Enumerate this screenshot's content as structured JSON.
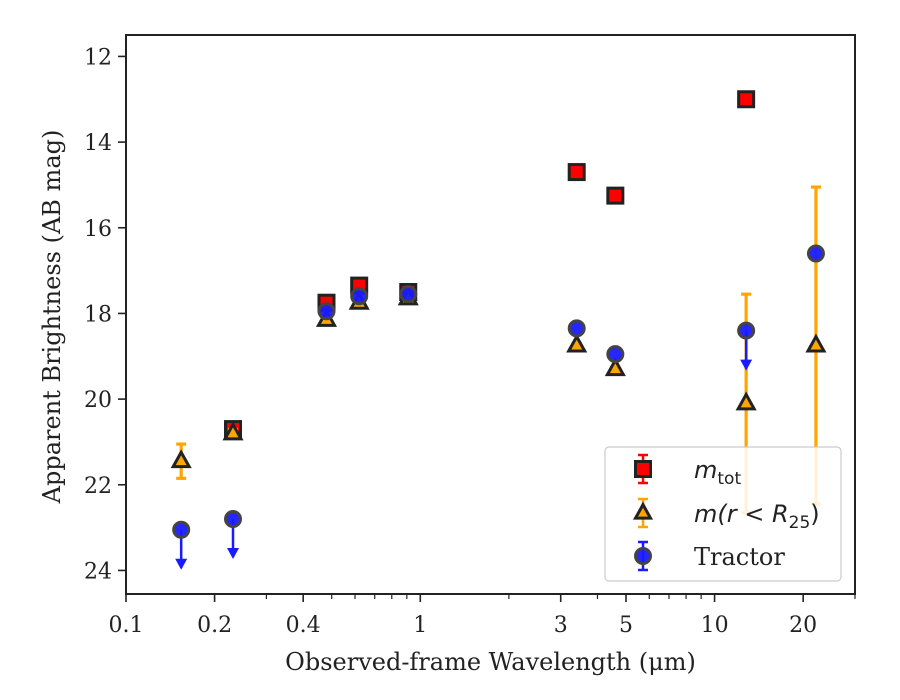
{
  "chart_data": {
    "type": "scatter",
    "xlabel": "Observed-frame Wavelength (μm)",
    "ylabel": "Apparent Brightness (AB mag)",
    "xscale": "log",
    "xlim": [
      0.1,
      30
    ],
    "ylim": [
      24.55,
      11.5
    ],
    "y_inverted": true,
    "grid": false,
    "legend_position": "lower-right",
    "x_ticks": [
      {
        "value": 0.1,
        "label": "0.1"
      },
      {
        "value": 0.2,
        "label": "0.2"
      },
      {
        "value": 0.4,
        "label": "0.4"
      },
      {
        "value": 1,
        "label": "1"
      },
      {
        "value": 3,
        "label": "3"
      },
      {
        "value": 5,
        "label": "5"
      },
      {
        "value": 10,
        "label": "10"
      },
      {
        "value": 20,
        "label": "20"
      }
    ],
    "y_ticks": [
      {
        "value": 12,
        "label": "12"
      },
      {
        "value": 14,
        "label": "14"
      },
      {
        "value": 16,
        "label": "16"
      },
      {
        "value": 18,
        "label": "18"
      },
      {
        "value": 20,
        "label": "20"
      },
      {
        "value": 22,
        "label": "22"
      },
      {
        "value": 24,
        "label": "24"
      }
    ],
    "series": [
      {
        "name": "m_tot",
        "legend_main": "m",
        "legend_sub": "tot",
        "marker": "square",
        "color": "#ff0000",
        "edge_color": "#222222",
        "points": [
          {
            "x": 0.231,
            "y": 20.7,
            "err": 0.1
          },
          {
            "x": 0.48,
            "y": 17.75,
            "err": 0.1
          },
          {
            "x": 0.62,
            "y": 17.35,
            "err": 0.1
          },
          {
            "x": 0.91,
            "y": 17.5,
            "err": 0.1
          },
          {
            "x": 3.4,
            "y": 14.7,
            "err": 0.05
          },
          {
            "x": 4.6,
            "y": 15.25,
            "err": 0.05
          },
          {
            "x": 12.8,
            "y": 13.0,
            "err": 0.05
          }
        ]
      },
      {
        "name": "m(r < R_25)",
        "legend_main": "m(r < R",
        "legend_sub": "25",
        "legend_tail": ")",
        "marker": "triangle",
        "color": "#ffa500",
        "edge_color": "#222222",
        "points": [
          {
            "x": 0.154,
            "y": 21.45,
            "err": 0.4
          },
          {
            "x": 0.231,
            "y": 20.8,
            "err": 0.1
          },
          {
            "x": 0.48,
            "y": 18.15,
            "err": 0.05
          },
          {
            "x": 0.62,
            "y": 17.75,
            "err": 0.05
          },
          {
            "x": 0.91,
            "y": 17.65,
            "err": 0.05
          },
          {
            "x": 3.4,
            "y": 18.75,
            "err": 0.05
          },
          {
            "x": 4.6,
            "y": 19.3,
            "err": 0.05
          },
          {
            "x": 12.8,
            "y": 20.1,
            "err": 2.55
          },
          {
            "x": 22.1,
            "y": 18.75,
            "err": 3.7
          }
        ]
      },
      {
        "name": "Tractor",
        "legend_main": "Tractor",
        "marker": "circle",
        "color": "#1a1aff",
        "edge_color": "#444444",
        "points": [
          {
            "x": 0.154,
            "y": 23.05,
            "upper_limit": true
          },
          {
            "x": 0.231,
            "y": 22.8,
            "upper_limit": true
          },
          {
            "x": 0.48,
            "y": 17.95
          },
          {
            "x": 0.62,
            "y": 17.6
          },
          {
            "x": 0.91,
            "y": 17.55
          },
          {
            "x": 3.4,
            "y": 18.35
          },
          {
            "x": 4.6,
            "y": 18.95
          },
          {
            "x": 12.8,
            "y": 18.4,
            "upper_limit": true
          },
          {
            "x": 22.1,
            "y": 16.6
          }
        ]
      }
    ]
  }
}
